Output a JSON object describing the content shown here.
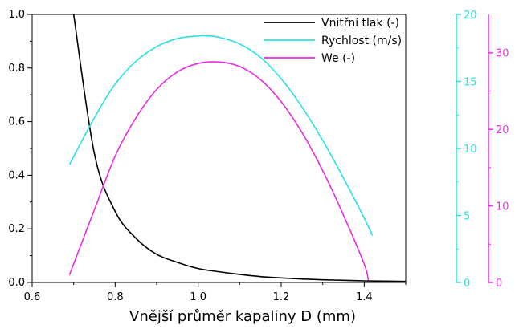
{
  "chart_data": {
    "type": "line",
    "title": "",
    "xlabel": "Vnější průměr kapaliny D (mm)",
    "xlim": [
      0.6,
      1.5
    ],
    "xticks": [
      0.6,
      0.8,
      1.0,
      1.2,
      1.4
    ],
    "xtick_labels": [
      "0.6",
      "0.8",
      "1.0",
      "1.2",
      "1.4"
    ],
    "axes": [
      {
        "id": "left",
        "ylim": [
          0,
          1
        ],
        "ticks": [
          0.0,
          0.2,
          0.4,
          0.6,
          0.8,
          1.0
        ],
        "tick_labels": [
          "0.0",
          "0.2",
          "0.4",
          "0.6",
          "0.8",
          "1.0"
        ],
        "color": "#000000"
      },
      {
        "id": "right1",
        "ylim": [
          0,
          20
        ],
        "ticks": [
          0,
          5,
          10,
          15,
          20
        ],
        "tick_labels": [
          "0",
          "5",
          "10",
          "15",
          "20"
        ],
        "color": "#29e3e3"
      },
      {
        "id": "right2",
        "ylim": [
          0,
          35
        ],
        "ticks": [
          0,
          10,
          20,
          30
        ],
        "tick_labels": [
          "0",
          "10",
          "20",
          "30"
        ],
        "color": "#e62ee6"
      }
    ],
    "legend_position": "top-right",
    "series": [
      {
        "name": "Vnitřní tlak (-)",
        "axis": "left",
        "color": "#000000",
        "x": [
          0.7,
          0.75,
          0.8,
          0.85,
          0.9,
          0.95,
          1.0,
          1.05,
          1.1,
          1.15,
          1.2,
          1.25,
          1.3,
          1.35,
          1.4,
          1.45,
          1.5
        ],
        "y": [
          1.0,
          0.48,
          0.265,
          0.165,
          0.105,
          0.075,
          0.052,
          0.04,
          0.03,
          0.022,
          0.017,
          0.013,
          0.01,
          0.008,
          0.006,
          0.005,
          0.004
        ]
      },
      {
        "name": "Rychlost (m/s)",
        "axis": "right1",
        "color": "#29e3e3",
        "x": [
          0.69,
          0.75,
          0.8,
          0.85,
          0.9,
          0.95,
          1.0,
          1.02,
          1.05,
          1.1,
          1.15,
          1.2,
          1.25,
          1.3,
          1.35,
          1.4,
          1.42
        ],
        "y": [
          8.8,
          12.3,
          14.8,
          16.5,
          17.6,
          18.2,
          18.4,
          18.4,
          18.3,
          17.8,
          16.8,
          15.2,
          13.1,
          10.6,
          7.8,
          4.8,
          3.5
        ]
      },
      {
        "name": "We (-)",
        "axis": "right2",
        "color": "#e62ee6",
        "x": [
          0.69,
          0.75,
          0.8,
          0.85,
          0.9,
          0.95,
          1.0,
          1.05,
          1.1,
          1.15,
          1.2,
          1.25,
          1.3,
          1.35,
          1.4,
          1.41
        ],
        "y": [
          1.0,
          9.5,
          16.5,
          21.5,
          25.2,
          27.5,
          28.6,
          28.8,
          28.2,
          26.5,
          23.6,
          19.6,
          14.6,
          8.8,
          2.4,
          0.3
        ]
      }
    ]
  }
}
